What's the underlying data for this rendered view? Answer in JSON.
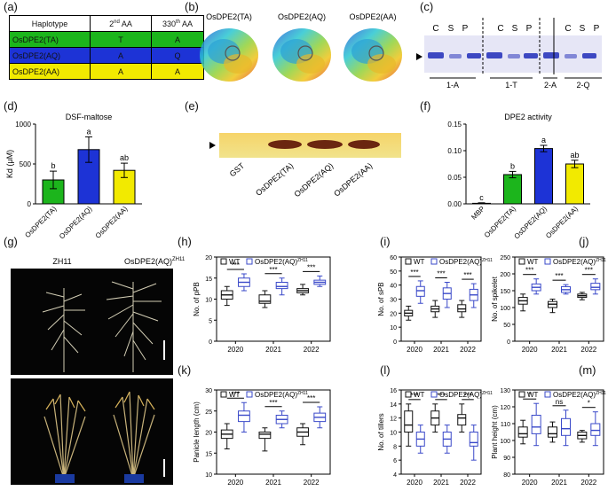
{
  "panel_labels": {
    "a": "(a)",
    "b": "(b)",
    "c": "(c)",
    "d": "(d)",
    "e": "(e)",
    "f": "(f)",
    "g": "(g)",
    "h": "(h)",
    "i": "(i)",
    "j": "(j)",
    "k": "(k)",
    "l": "(l)",
    "m": "(m)"
  },
  "panel_a": {
    "header": [
      "Haplotype",
      "2nd AA",
      "330th AA"
    ],
    "header_sup_base": [
      "",
      "2",
      "330"
    ],
    "header_sup": [
      "",
      "nd",
      "th"
    ],
    "header_tail": [
      "",
      " AA",
      " AA"
    ],
    "rows": [
      {
        "name": "OsDPE2(TA)",
        "aa2": "T",
        "aa330": "A",
        "color": "#1cb51c"
      },
      {
        "name": "OsDPE2(AQ)",
        "aa2": "A",
        "aa330": "Q",
        "color": "#1d33d6"
      },
      {
        "name": "OsDPE2(AA)",
        "aa2": "A",
        "aa330": "A",
        "color": "#f2ea00"
      }
    ]
  },
  "panel_b": {
    "labels": [
      "OsDPE2(TA)",
      "OsDPE2(AQ)",
      "OsDPE2(AA)"
    ]
  },
  "panel_c": {
    "lane_letters": [
      "C",
      "S",
      "P"
    ],
    "groups": [
      "1-A",
      "1-T",
      "2-A",
      "2-Q"
    ]
  },
  "panel_e": {
    "lanes": [
      "GST",
      "OsDPE2(TA)",
      "OsDPE2(AQ)",
      "OsDPE2(AA)"
    ]
  },
  "panel_g": {
    "top_labels": [
      "ZH11",
      "OsDPE2(AQ)"
    ],
    "top_sup": "ZH11"
  },
  "legend": {
    "wt": "WT",
    "mut": "OsDPE2(AQ)",
    "mut_sup": "ZH11"
  },
  "colors": {
    "green": "#1cb51c",
    "blue": "#1d33d6",
    "yellow": "#f2ea00",
    "box_blue": "#3a49c9",
    "box_black": "#111111"
  },
  "chart_data": [
    {
      "id": "d",
      "type": "bar",
      "title": "DSF-maltose",
      "ylabel": "Kd (μM)",
      "ylim": [
        0,
        1000
      ],
      "yticks": [
        0,
        500,
        1000
      ],
      "categories": [
        "OsDPE2(TA)",
        "OsDPE2(AQ)",
        "OsDPE2(AA)"
      ],
      "values": [
        300,
        680,
        420
      ],
      "errors": [
        110,
        160,
        90
      ],
      "letters": [
        "b",
        "a",
        "ab"
      ],
      "colors": [
        "#1cb51c",
        "#1d33d6",
        "#f2ea00"
      ]
    },
    {
      "id": "f",
      "type": "bar",
      "title": "DPE2 activity",
      "ylim": [
        0,
        0.15
      ],
      "yticks": [
        0,
        0.05,
        0.1,
        0.15
      ],
      "ytick_labels": [
        "0.00",
        "0.05",
        "0.10",
        "0.15"
      ],
      "categories": [
        "MBP",
        "OsDPE2(TA)",
        "OsDPE2(AQ)",
        "OsDPE2(AA)"
      ],
      "values": [
        0.001,
        0.055,
        0.104,
        0.075
      ],
      "errors": [
        0.001,
        0.006,
        0.006,
        0.007
      ],
      "letters": [
        "c",
        "b",
        "a",
        "ab"
      ],
      "colors": [
        "#ffffff",
        "#1cb51c",
        "#1d33d6",
        "#f2ea00"
      ]
    },
    {
      "id": "h",
      "type": "box",
      "ylabel": "No. of pPB",
      "ylim": [
        0,
        20
      ],
      "yticks": [
        0,
        5,
        10,
        15,
        20
      ],
      "years": [
        "2020",
        "2021",
        "2022"
      ],
      "wt": [
        {
          "q1": 10,
          "med": 11,
          "q3": 12,
          "min": 8.5,
          "max": 13
        },
        {
          "q1": 9,
          "med": 9.5,
          "q3": 11,
          "min": 8,
          "max": 12
        },
        {
          "q1": 11.5,
          "med": 12,
          "q3": 12.5,
          "min": 11,
          "max": 13.5
        }
      ],
      "mut": [
        {
          "q1": 13,
          "med": 14,
          "q3": 15,
          "min": 12,
          "max": 16
        },
        {
          "q1": 12.5,
          "med": 13,
          "q3": 14,
          "min": 11,
          "max": 15
        },
        {
          "q1": 13.5,
          "med": 14,
          "q3": 14.5,
          "min": 13,
          "max": 15.5
        }
      ],
      "sig": [
        "***",
        "***",
        "***"
      ]
    },
    {
      "id": "i",
      "type": "box",
      "ylabel": "No. of sPB",
      "ylim": [
        0,
        60
      ],
      "yticks": [
        0,
        10,
        20,
        30,
        40,
        50,
        60
      ],
      "years": [
        "2020",
        "2021",
        "2022"
      ],
      "wt": [
        {
          "q1": 18,
          "med": 20,
          "q3": 22,
          "min": 15,
          "max": 25
        },
        {
          "q1": 21,
          "med": 23,
          "q3": 25,
          "min": 17,
          "max": 29
        },
        {
          "q1": 21,
          "med": 23,
          "q3": 26,
          "min": 17,
          "max": 29
        }
      ],
      "mut": [
        {
          "q1": 32,
          "med": 36,
          "q3": 39,
          "min": 27,
          "max": 43
        },
        {
          "q1": 30,
          "med": 34,
          "q3": 38,
          "min": 24,
          "max": 42
        },
        {
          "q1": 29,
          "med": 33,
          "q3": 37,
          "min": 24,
          "max": 41
        }
      ],
      "sig": [
        "***",
        "***",
        "***"
      ]
    },
    {
      "id": "j",
      "type": "box",
      "ylabel": "No. of spikelet",
      "ylim": [
        0,
        250
      ],
      "yticks": [
        0,
        50,
        100,
        150,
        200,
        250
      ],
      "years": [
        "2020",
        "2021",
        "2022"
      ],
      "wt": [
        {
          "q1": 110,
          "med": 120,
          "q3": 130,
          "min": 90,
          "max": 140
        },
        {
          "q1": 100,
          "med": 110,
          "q3": 118,
          "min": 85,
          "max": 125
        },
        {
          "q1": 130,
          "med": 135,
          "q3": 140,
          "min": 123,
          "max": 145
        }
      ],
      "mut": [
        {
          "q1": 150,
          "med": 160,
          "q3": 170,
          "min": 140,
          "max": 185
        },
        {
          "q1": 145,
          "med": 153,
          "q3": 162,
          "min": 140,
          "max": 168
        },
        {
          "q1": 153,
          "med": 160,
          "q3": 172,
          "min": 140,
          "max": 185
        }
      ],
      "sig": [
        "***",
        "***",
        "***"
      ]
    },
    {
      "id": "k",
      "type": "box",
      "ylabel": "Panicle length (cm)",
      "ylim": [
        10,
        30
      ],
      "yticks": [
        10,
        15,
        20,
        25,
        30
      ],
      "years": [
        "2020",
        "2021",
        "2022"
      ],
      "wt": [
        {
          "q1": 18.5,
          "med": 19.5,
          "q3": 20.5,
          "min": 16,
          "max": 22
        },
        {
          "q1": 18.5,
          "med": 19.5,
          "q3": 20,
          "min": 15.5,
          "max": 21
        },
        {
          "q1": 19,
          "med": 20,
          "q3": 21,
          "min": 17,
          "max": 22
        }
      ],
      "mut": [
        {
          "q1": 22.5,
          "med": 24,
          "q3": 25,
          "min": 20,
          "max": 27
        },
        {
          "q1": 22,
          "med": 23,
          "q3": 24,
          "min": 21,
          "max": 25
        },
        {
          "q1": 22.5,
          "med": 23.5,
          "q3": 24.5,
          "min": 21,
          "max": 26
        }
      ],
      "sig": [
        "***",
        "***",
        "***"
      ]
    },
    {
      "id": "l",
      "type": "box",
      "ylabel": "No. of tillers",
      "ylim": [
        4,
        16
      ],
      "yticks": [
        4,
        6,
        8,
        10,
        12,
        14,
        16
      ],
      "years": [
        "2020",
        "2021",
        "2022"
      ],
      "wt": [
        {
          "q1": 10,
          "med": 11,
          "q3": 13,
          "min": 8,
          "max": 14
        },
        {
          "q1": 11,
          "med": 12,
          "q3": 13,
          "min": 10,
          "max": 14
        },
        {
          "q1": 11,
          "med": 12,
          "q3": 12.5,
          "min": 10,
          "max": 14
        }
      ],
      "mut": [
        {
          "q1": 8,
          "med": 9,
          "q3": 10,
          "min": 7,
          "max": 11
        },
        {
          "q1": 8,
          "med": 9,
          "q3": 10,
          "min": 7,
          "max": 11
        },
        {
          "q1": 8,
          "med": 8.5,
          "q3": 10,
          "min": 6,
          "max": 11
        }
      ],
      "sig": [
        "***",
        "***",
        "***"
      ]
    },
    {
      "id": "m",
      "type": "box",
      "ylabel": "Plant height (cm)",
      "ylim": [
        80,
        130
      ],
      "yticks": [
        80,
        90,
        100,
        110,
        120,
        130
      ],
      "years": [
        "2020",
        "2021",
        "2022"
      ],
      "wt": [
        {
          "q1": 102,
          "med": 104,
          "q3": 108,
          "min": 98,
          "max": 112
        },
        {
          "q1": 102,
          "med": 104,
          "q3": 108,
          "min": 99,
          "max": 111
        },
        {
          "q1": 101,
          "med": 103,
          "q3": 105,
          "min": 99,
          "max": 106
        }
      ],
      "mut": [
        {
          "q1": 104,
          "med": 108,
          "q3": 115,
          "min": 97,
          "max": 122
        },
        {
          "q1": 103,
          "med": 107,
          "q3": 113,
          "min": 97,
          "max": 118
        },
        {
          "q1": 103,
          "med": 106,
          "q3": 110,
          "min": 97,
          "max": 117
        }
      ],
      "sig": [
        "*",
        "ns",
        "*"
      ]
    }
  ]
}
